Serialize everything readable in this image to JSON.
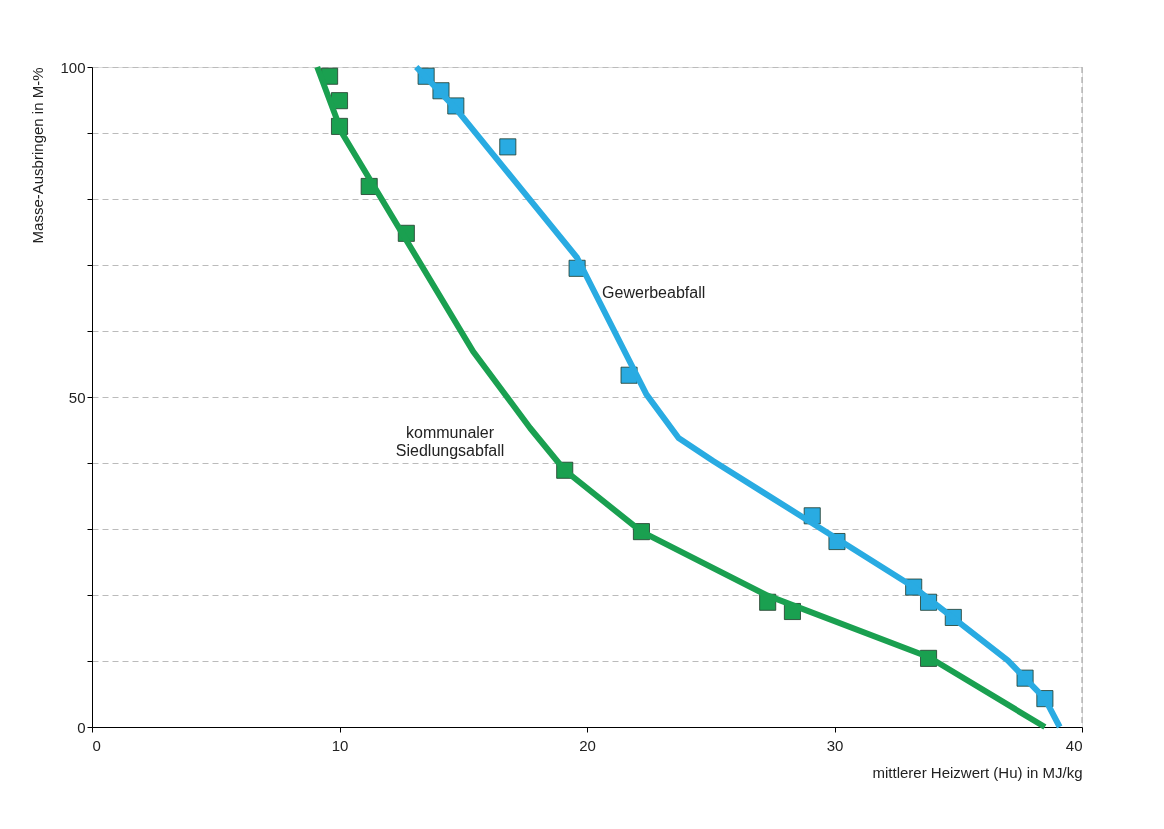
{
  "chart_data": {
    "type": "scatter",
    "xlabel": "mittlerer Heizwert (Hu) in MJ/kg",
    "ylabel": "Masse-Ausbringen in M-%",
    "xlim": [
      0,
      40
    ],
    "ylim": [
      0,
      100
    ],
    "xticks": [
      0,
      10,
      20,
      30,
      40
    ],
    "yticks": [
      0,
      {
        "value": 10,
        "label": null
      },
      {
        "value": 20,
        "label": null
      },
      {
        "value": 30,
        "label": null
      },
      {
        "value": 40,
        "label": null
      },
      50,
      {
        "value": 60,
        "label": null
      },
      {
        "value": 70,
        "label": null
      },
      {
        "value": 80,
        "label": null
      },
      {
        "value": 90,
        "label": null
      },
      100
    ],
    "grid": "y",
    "ref_lines": [
      {
        "axis": "x",
        "value": 40,
        "label": null,
        "color": "#999999",
        "line_style": "dashed"
      }
    ],
    "series": [
      {
        "marker": "square",
        "color": "#29abe2",
        "x": [
          13.5,
          14.1,
          14.7,
          16.8,
          19.6,
          21.7,
          29.1,
          30.1,
          33.2,
          33.8,
          34.8,
          37.7,
          38.5
        ],
        "values": [
          98.6,
          96.4,
          94.1,
          87.9,
          69.5,
          53.3,
          32.0,
          28.1,
          21.2,
          18.9,
          16.6,
          7.4,
          4.3
        ]
      },
      {
        "type": "line",
        "name": "Gewerbeabfall",
        "color": "#29abe2",
        "x": [
          13.1,
          14.7,
          19.6,
          22.4,
          23.7,
          25.1,
          28.8,
          33.2,
          37.0,
          38.5,
          39.1
        ],
        "values": [
          100,
          93.7,
          71.1,
          50.4,
          43.8,
          40.3,
          31.6,
          21.2,
          10.1,
          4.3,
          0
        ]
      },
      {
        "marker": "square",
        "color": "#1aa050",
        "x": [
          9.6,
          10.0,
          10.0,
          11.2,
          12.7,
          19.1,
          22.2,
          27.3,
          28.3,
          33.8
        ],
        "values": [
          98.6,
          94.9,
          91.0,
          81.9,
          74.8,
          38.9,
          29.6,
          18.9,
          17.5,
          10.4
        ]
      },
      {
        "type": "line",
        "name": "kommunaler Siedlungsabfall",
        "color": "#1aa050",
        "x": [
          9.1,
          10.1,
          15.4,
          17.7,
          19.1,
          22.2,
          27.3,
          33.8,
          38.5
        ],
        "values": [
          100,
          90.0,
          56.9,
          45.3,
          38.9,
          29.6,
          19.9,
          10.6,
          0
        ]
      }
    ]
  }
}
